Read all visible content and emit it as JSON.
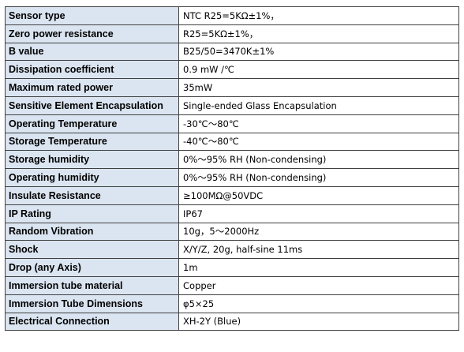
{
  "specs": [
    {
      "label": "Sensor type",
      "value": "NTC    R25=5KΩ±1%，"
    },
    {
      "label": "Zero power resistance",
      "value": "R25=5KΩ±1%，"
    },
    {
      "label": "B value",
      "value": "B25/50=3470K±1%"
    },
    {
      "label": "Dissipation coefficient",
      "value": "0.9 mW /℃"
    },
    {
      "label": "Maximum rated power",
      "value": "35mW"
    },
    {
      "label": "Sensitive Element Encapsulation",
      "value": "Single-ended Glass Encapsulation"
    },
    {
      "label": "Operating Temperature",
      "value": "-30℃～80℃"
    },
    {
      "label": "Storage Temperature",
      "value": "-40℃～80℃"
    },
    {
      "label": "Storage humidity",
      "value": "0%～95% RH (Non-condensing)"
    },
    {
      "label": "Operating humidity",
      "value": "0%～95% RH (Non-condensing)"
    },
    {
      "label": "Insulate Resistance",
      "value": "≥100MΩ@50VDC"
    },
    {
      "label": "IP Rating",
      "value": "IP67"
    },
    {
      "label": "Random Vibration",
      "value": "10g，5～2000Hz"
    },
    {
      "label": "Shock",
      "value": "X/Y/Z, 20g, half-sine 11ms"
    },
    {
      "label": "Drop (any Axis)",
      "value": "1m"
    },
    {
      "label": "Immersion tube material",
      "value": "Copper"
    },
    {
      "label": "Immersion Tube Dimensions",
      "value": "φ5×25"
    },
    {
      "label": "Electrical Connection",
      "value": "XH-2Y (Blue)"
    }
  ]
}
